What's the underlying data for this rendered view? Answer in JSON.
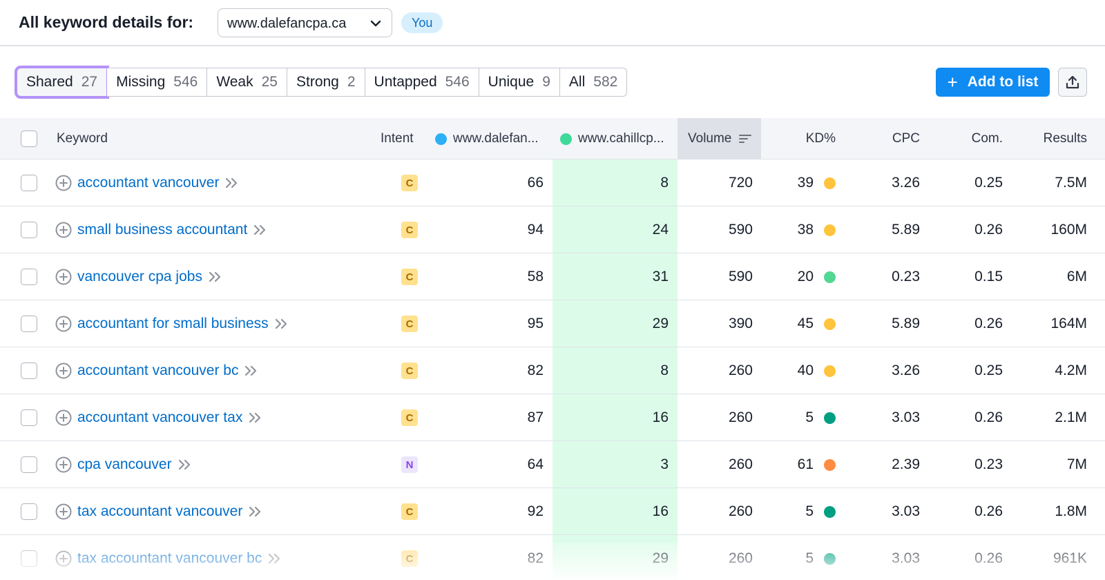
{
  "header": {
    "title": "All keyword details for:",
    "domain": "www.dalefancpa.ca",
    "you_badge": "You"
  },
  "tabs": [
    {
      "label": "Shared",
      "count": "27",
      "active": true
    },
    {
      "label": "Missing",
      "count": "546"
    },
    {
      "label": "Weak",
      "count": "25"
    },
    {
      "label": "Strong",
      "count": "2"
    },
    {
      "label": "Untapped",
      "count": "546"
    },
    {
      "label": "Unique",
      "count": "9"
    },
    {
      "label": "All",
      "count": "582"
    }
  ],
  "toolbar": {
    "add_label": "Add to list",
    "export_icon": "upload-icon"
  },
  "table": {
    "headers": {
      "keyword": "Keyword",
      "intent": "Intent",
      "domain1": "www.dalefan...",
      "domain2": "www.cahillcp...",
      "volume": "Volume",
      "kd": "KD%",
      "cpc": "CPC",
      "com": "Com.",
      "results": "Results"
    },
    "colors": {
      "domain1_dot": "#2bb0f6",
      "domain2_dot": "#3fd99a",
      "kd_yellow": "#ffc43d",
      "kd_green_light": "#53d795",
      "kd_green_dark": "#009f81",
      "kd_orange": "#ff8c43",
      "intent_c_bg": "#ffe18f",
      "intent_c_fg": "#a76c00",
      "intent_n_bg": "#ece5fd",
      "intent_n_fg": "#8649e1"
    },
    "rows": [
      {
        "keyword": "accountant vancouver",
        "intent": "C",
        "pos1": "66",
        "pos2": "8",
        "volume": "720",
        "kd": "39",
        "kd_color": "yellow",
        "cpc": "3.26",
        "com": "0.25",
        "results": "7.5M"
      },
      {
        "keyword": "small business accountant",
        "intent": "C",
        "pos1": "94",
        "pos2": "24",
        "volume": "590",
        "kd": "38",
        "kd_color": "yellow",
        "cpc": "5.89",
        "com": "0.26",
        "results": "160M"
      },
      {
        "keyword": "vancouver cpa jobs",
        "intent": "C",
        "pos1": "58",
        "pos2": "31",
        "volume": "590",
        "kd": "20",
        "kd_color": "green_light",
        "cpc": "0.23",
        "com": "0.15",
        "results": "6M"
      },
      {
        "keyword": "accountant for small business",
        "intent": "C",
        "pos1": "95",
        "pos2": "29",
        "volume": "390",
        "kd": "45",
        "kd_color": "yellow",
        "cpc": "5.89",
        "com": "0.26",
        "results": "164M"
      },
      {
        "keyword": "accountant vancouver bc",
        "intent": "C",
        "pos1": "82",
        "pos2": "8",
        "volume": "260",
        "kd": "40",
        "kd_color": "yellow",
        "cpc": "3.26",
        "com": "0.25",
        "results": "4.2M"
      },
      {
        "keyword": "accountant vancouver tax",
        "intent": "C",
        "pos1": "87",
        "pos2": "16",
        "volume": "260",
        "kd": "5",
        "kd_color": "green_dark",
        "cpc": "3.03",
        "com": "0.26",
        "results": "2.1M"
      },
      {
        "keyword": "cpa vancouver",
        "intent": "N",
        "pos1": "64",
        "pos2": "3",
        "volume": "260",
        "kd": "61",
        "kd_color": "orange",
        "cpc": "2.39",
        "com": "0.23",
        "results": "7M"
      },
      {
        "keyword": "tax accountant vancouver",
        "intent": "C",
        "pos1": "92",
        "pos2": "16",
        "volume": "260",
        "kd": "5",
        "kd_color": "green_dark",
        "cpc": "3.03",
        "com": "0.26",
        "results": "1.8M"
      },
      {
        "keyword": "tax accountant vancouver bc",
        "intent": "C",
        "pos1": "82",
        "pos2": "29",
        "volume": "260",
        "kd": "5",
        "kd_color": "green_dark",
        "cpc": "3.03",
        "com": "0.26",
        "results": "961K"
      }
    ]
  }
}
